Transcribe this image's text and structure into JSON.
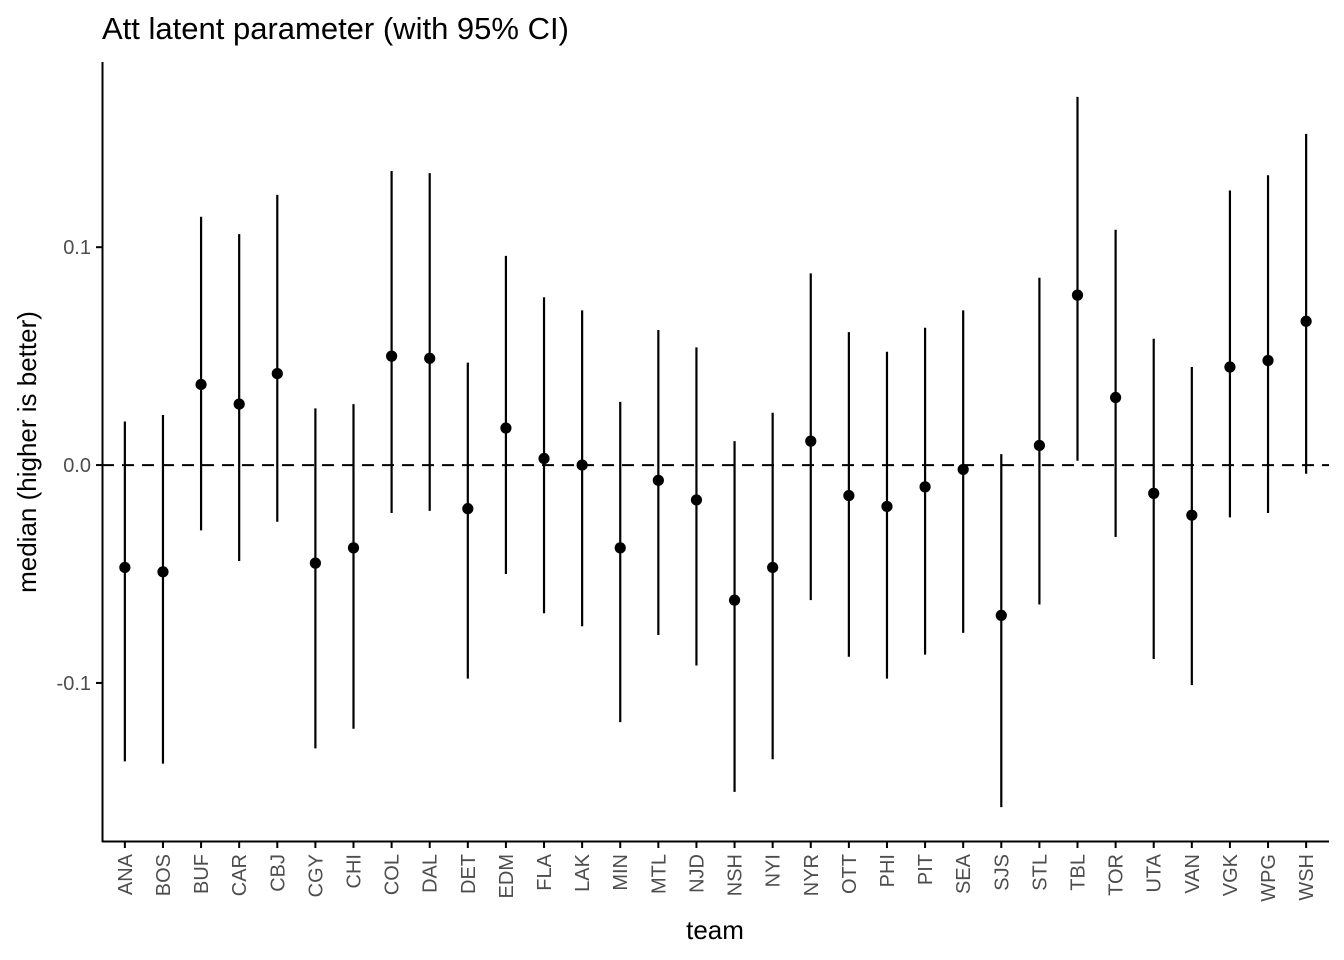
{
  "chart_data": {
    "type": "scatter",
    "title": "Att latent parameter (with 95% CI)",
    "xlabel": "team",
    "ylabel": "median (higher is better)",
    "ylim": [
      -0.173,
      0.185
    ],
    "yticks": [
      0.1,
      0.0,
      -0.1
    ],
    "ytick_labels": [
      "0.1",
      "0.0",
      "-0.1"
    ],
    "reference_line": {
      "y": 0.0,
      "style": "dashed"
    },
    "grid": false,
    "legend": "none",
    "colors": {
      "point": "#000000",
      "errorbar": "#000000",
      "axis": "#000000",
      "tick_text": "#4d4d4d"
    },
    "categories": [
      "ANA",
      "BOS",
      "BUF",
      "CAR",
      "CBJ",
      "CGY",
      "CHI",
      "COL",
      "DAL",
      "DET",
      "EDM",
      "FLA",
      "LAK",
      "MIN",
      "MTL",
      "NJD",
      "NSH",
      "NYI",
      "NYR",
      "OTT",
      "PHI",
      "PIT",
      "SEA",
      "SJS",
      "STL",
      "TBL",
      "TOR",
      "UTA",
      "VAN",
      "VGK",
      "WPG",
      "WSH"
    ],
    "median": [
      -0.047,
      -0.049,
      0.037,
      0.028,
      0.042,
      -0.045,
      -0.038,
      0.05,
      0.049,
      -0.02,
      0.017,
      0.003,
      0.0,
      -0.038,
      -0.007,
      -0.016,
      -0.062,
      -0.047,
      0.011,
      -0.014,
      -0.019,
      -0.01,
      -0.002,
      -0.069,
      0.009,
      0.078,
      0.031,
      -0.013,
      -0.023,
      0.045,
      0.048,
      0.066
    ],
    "lower": [
      -0.136,
      -0.137,
      -0.03,
      -0.044,
      -0.026,
      -0.13,
      -0.121,
      -0.022,
      -0.021,
      -0.098,
      -0.05,
      -0.068,
      -0.074,
      -0.118,
      -0.078,
      -0.092,
      -0.15,
      -0.135,
      -0.062,
      -0.088,
      -0.098,
      -0.087,
      -0.077,
      -0.157,
      -0.064,
      0.002,
      -0.033,
      -0.089,
      -0.101,
      -0.024,
      -0.022,
      -0.004
    ],
    "upper": [
      0.02,
      0.023,
      0.114,
      0.106,
      0.124,
      0.026,
      0.028,
      0.135,
      0.134,
      0.047,
      0.096,
      0.077,
      0.071,
      0.029,
      0.062,
      0.054,
      0.011,
      0.024,
      0.088,
      0.061,
      0.052,
      0.063,
      0.071,
      0.005,
      0.086,
      0.169,
      0.108,
      0.058,
      0.045,
      0.126,
      0.133,
      0.152
    ]
  }
}
